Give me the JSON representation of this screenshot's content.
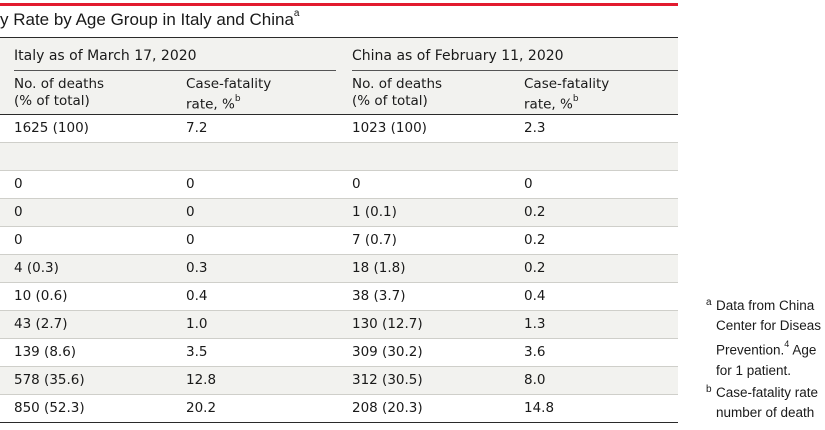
{
  "title": {
    "text": "y Rate by Age Group in Italy and China",
    "sup": "a"
  },
  "groups": {
    "italy": "Italy as of March 17, 2020",
    "china": "China as of February 11, 2020"
  },
  "columns": {
    "deaths_line1": "No. of deaths",
    "deaths_line2": "(% of total)",
    "cfr_line1": "Case-fatality",
    "cfr_line2": "rate, %",
    "cfr_sup": "b"
  },
  "rows": [
    [
      "1625 (100)",
      "7.2",
      "1023 (100)",
      "2.3"
    ],
    [
      "",
      "",
      "",
      ""
    ],
    [
      "0",
      "0",
      "0",
      "0"
    ],
    [
      "0",
      "0",
      "1 (0.1)",
      "0.2"
    ],
    [
      "0",
      "0",
      "7 (0.7)",
      "0.2"
    ],
    [
      "4 (0.3)",
      "0.3",
      "18 (1.8)",
      "0.2"
    ],
    [
      "10 (0.6)",
      "0.4",
      "38 (3.7)",
      "0.4"
    ],
    [
      "43 (2.7)",
      "1.0",
      "130 (12.7)",
      "1.3"
    ],
    [
      "139 (8.6)",
      "3.5",
      "309 (30.2)",
      "3.6"
    ],
    [
      "578 (35.6)",
      "12.8",
      "312 (30.5)",
      "8.0"
    ],
    [
      "850 (52.3)",
      "20.2",
      "208 (20.3)",
      "14.8"
    ]
  ],
  "footnotes": {
    "a_mark": "a",
    "a_lines": [
      "Data from China",
      "Center for Diseas",
      "Prevention.",
      "for 1 patient."
    ],
    "a_ref": "4",
    "a_tail": " Age",
    "b_mark": "b",
    "b_lines": [
      "Case-fatality rate",
      "number of death"
    ]
  },
  "colors": {
    "accent": "#e21b2f",
    "band": "#f2f2ef"
  }
}
